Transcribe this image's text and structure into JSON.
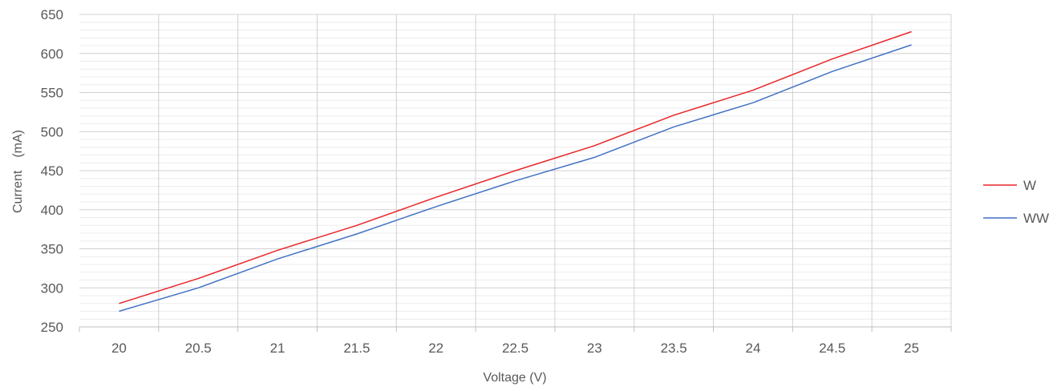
{
  "chart_data": {
    "type": "line",
    "x": [
      20,
      20.5,
      21,
      21.5,
      22,
      22.5,
      23,
      23.5,
      24,
      24.5,
      25
    ],
    "x_tick_labels": [
      "20",
      "20.5",
      "21",
      "21.5",
      "22",
      "22.5",
      "23",
      "23.5",
      "24",
      "24.5",
      "25"
    ],
    "series": [
      {
        "name": "W",
        "color": "#e8252a",
        "values": [
          280,
          312,
          348,
          380,
          416,
          450,
          482,
          521,
          553,
          593,
          628
        ]
      },
      {
        "name": "WW",
        "color": "#4472c4",
        "values": [
          270,
          300,
          337,
          369,
          404,
          437,
          467,
          506,
          537,
          577,
          611
        ]
      }
    ],
    "xlabel": "Voltage (V)",
    "ylabel": "Current　(mA)",
    "ylim": [
      250,
      650
    ],
    "y_ticks": [
      "250",
      "300",
      "350",
      "400",
      "450",
      "500",
      "550",
      "600",
      "650"
    ],
    "grid": true,
    "legend_position": "right"
  }
}
